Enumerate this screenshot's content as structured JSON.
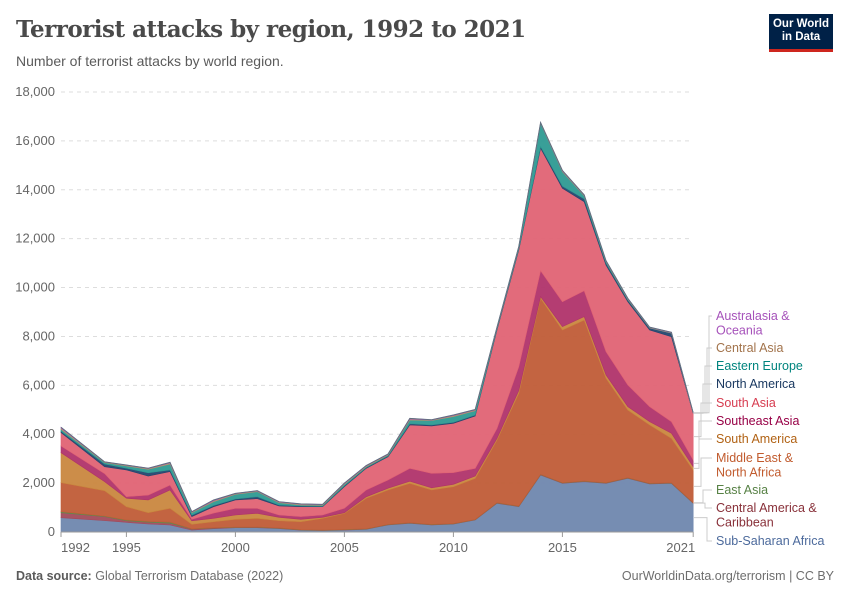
{
  "header": {
    "title": "Terrorist attacks by region, 1992 to 2021",
    "subtitle": "Number of terrorist attacks by world region.",
    "logo_line1": "Our World",
    "logo_line2": "in Data"
  },
  "footer": {
    "source_label": "Data source:",
    "source": "Global Terrorism Database (2022)",
    "credit": "OurWorldinData.org/terrorism | CC BY"
  },
  "chart_data": {
    "type": "area",
    "stacked": true,
    "title": "Terrorist attacks by region, 1992 to 2021",
    "xlabel": "",
    "ylabel": "",
    "ylim": [
      0,
      18000
    ],
    "yticks": [
      0,
      2000,
      4000,
      6000,
      8000,
      10000,
      12000,
      14000,
      16000,
      18000
    ],
    "ytick_labels": [
      "0",
      "2,000",
      "4,000",
      "6,000",
      "8,000",
      "10,000",
      "12,000",
      "14,000",
      "16,000",
      "18,000"
    ],
    "xticks": [
      1992,
      1995,
      2000,
      2005,
      2010,
      2015,
      2021
    ],
    "grid": "horizontal dashed",
    "legend": "right",
    "x": [
      1992,
      1994,
      1995,
      1996,
      1997,
      1998,
      1999,
      2000,
      2001,
      2002,
      2003,
      2004,
      2005,
      2006,
      2007,
      2008,
      2009,
      2010,
      2011,
      2012,
      2013,
      2014,
      2015,
      2016,
      2017,
      2018,
      2019,
      2020,
      2021
    ],
    "series": [
      {
        "name": "Sub-Saharan Africa",
        "color": "#6f87ae",
        "label_color": "#4c6a9c",
        "values": [
          585,
          465,
          395,
          327,
          286,
          80,
          135,
          177,
          175,
          140,
          75,
          60,
          80,
          110,
          290,
          355,
          290,
          325,
          490,
          1175,
          1035,
          2330,
          1990,
          2060,
          1990,
          2195,
          1965,
          1990,
          1175
        ]
      },
      {
        "name": "Central America & Caribbean",
        "color": "#a24b5c",
        "label_color": "#883039",
        "values": [
          205,
          165,
          65,
          73,
          74,
          40,
          30,
          10,
          15,
          15,
          10,
          10,
          10,
          10,
          10,
          15,
          10,
          10,
          10,
          15,
          15,
          20,
          15,
          15,
          15,
          15,
          15,
          15,
          15
        ]
      },
      {
        "name": "East Asia",
        "color": "#5f8a4c",
        "label_color": "#578145",
        "values": [
          40,
          20,
          30,
          30,
          40,
          10,
          10,
          10,
          10,
          10,
          10,
          10,
          10,
          10,
          10,
          10,
          10,
          10,
          10,
          10,
          10,
          10,
          10,
          10,
          10,
          10,
          10,
          10,
          10
        ]
      },
      {
        "name": "Middle East & North Africa",
        "color": "#c05c37",
        "label_color": "#c15b2e",
        "values": [
          1190,
          1040,
          545,
          360,
          570,
          185,
          245,
          323,
          360,
          295,
          325,
          480,
          665,
          1250,
          1410,
          1610,
          1410,
          1510,
          1685,
          2565,
          4615,
          7200,
          6250,
          6585,
          4275,
          2770,
          2390,
          1815,
          1335
        ]
      },
      {
        "name": "South America",
        "color": "#c9873f",
        "label_color": "#b16214",
        "values": [
          1225,
          370,
          345,
          520,
          750,
          145,
          140,
          175,
          205,
          140,
          100,
          40,
          25,
          60,
          70,
          90,
          90,
          95,
          95,
          65,
          110,
          70,
          135,
          140,
          135,
          140,
          135,
          210,
          135
        ]
      },
      {
        "name": "Southeast Asia",
        "color": "#b0336a",
        "label_color": "#970046",
        "values": [
          275,
          330,
          65,
          200,
          200,
          60,
          215,
          275,
          205,
          95,
          110,
          95,
          180,
          280,
          340,
          525,
          590,
          480,
          315,
          410,
          980,
          1060,
          1020,
          1060,
          955,
          885,
          615,
          475,
          275
        ]
      },
      {
        "name": "South Asia",
        "color": "#e06374",
        "label_color": "#d73c50",
        "values": [
          545,
          280,
          1095,
          780,
          550,
          110,
          260,
          340,
          395,
          370,
          405,
          340,
          885,
          885,
          950,
          1775,
          1940,
          2015,
          2140,
          4025,
          4775,
          5010,
          4640,
          3640,
          3540,
          3405,
          3135,
          3475,
          1910
        ]
      },
      {
        "name": "North America",
        "color": "#23466f",
        "label_color": "#18375f",
        "values": [
          60,
          110,
          70,
          130,
          70,
          60,
          50,
          40,
          80,
          35,
          30,
          20,
          35,
          30,
          30,
          50,
          40,
          40,
          40,
          40,
          40,
          70,
          90,
          120,
          80,
          70,
          75,
          140,
          10
        ]
      },
      {
        "name": "Eastern Europe",
        "color": "#2e9a92",
        "label_color": "#00847e",
        "values": [
          75,
          60,
          90,
          145,
          240,
          100,
          155,
          190,
          205,
          100,
          35,
          35,
          60,
          35,
          40,
          150,
          180,
          235,
          175,
          40,
          60,
          950,
          590,
          120,
          60,
          30,
          10,
          10,
          5
        ]
      },
      {
        "name": "Central Asia",
        "color": "#b5946a",
        "label_color": "#a2734b",
        "values": [
          50,
          20,
          25,
          30,
          45,
          25,
          40,
          25,
          25,
          25,
          30,
          25,
          30,
          30,
          25,
          40,
          20,
          40,
          30,
          20,
          25,
          20,
          30,
          25,
          25,
          25,
          15,
          15,
          5
        ]
      },
      {
        "name": "Australasia & Oceania",
        "color": "#a652ba",
        "label_color": "#a652ba",
        "values": [
          35,
          10,
          15,
          15,
          25,
          15,
          30,
          15,
          15,
          15,
          20,
          15,
          20,
          20,
          15,
          30,
          10,
          25,
          20,
          15,
          15,
          10,
          20,
          15,
          15,
          15,
          15,
          15,
          5
        ]
      }
    ]
  }
}
